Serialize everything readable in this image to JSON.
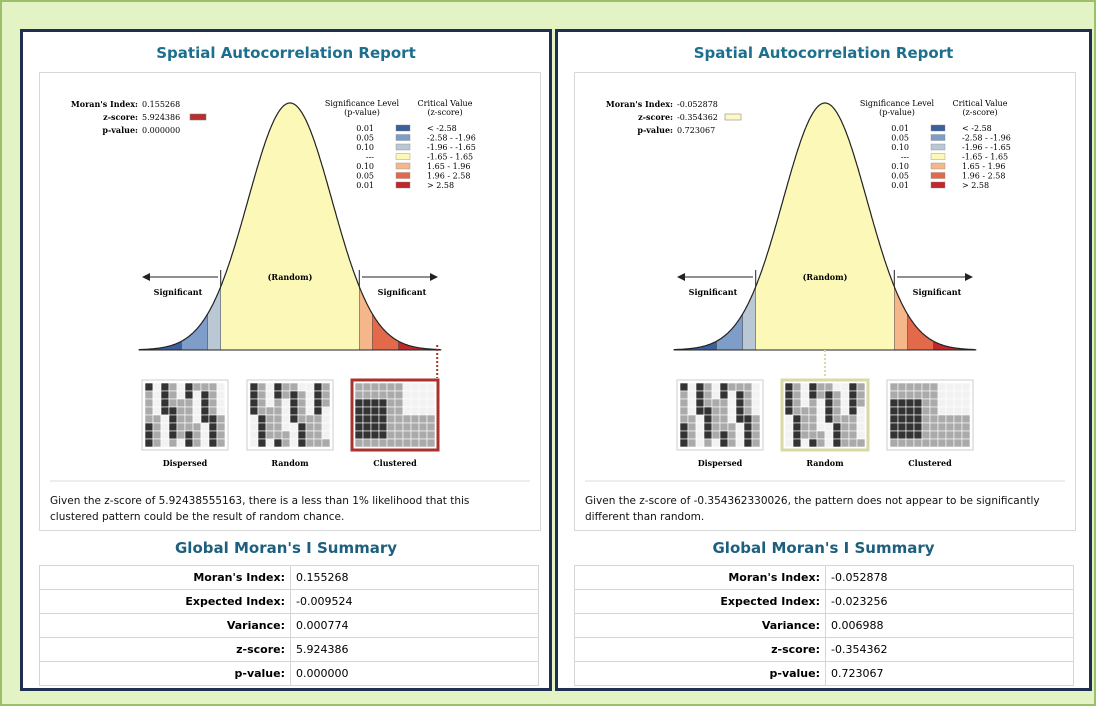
{
  "reports": [
    {
      "title": "Spatial Autocorrelation Report",
      "stats": [
        {
          "label": "Moran's Index:",
          "value": "0.155268"
        },
        {
          "label": "z-score:",
          "value": "5.924386"
        },
        {
          "label": "p-value:",
          "value": "0.000000"
        }
      ],
      "zscore_color": "#b8302e",
      "legend": {
        "headers": [
          [
            "Significance Level",
            "(p-value)"
          ],
          [
            "Critical Value",
            "(z-score)"
          ]
        ],
        "rows": [
          [
            "0.01",
            "< -2.58"
          ],
          [
            "0.05",
            "-2.58 - -1.96"
          ],
          [
            "0.10",
            "-1.96 - -1.65"
          ],
          [
            "---",
            "-1.65 - 1.65"
          ],
          [
            "0.10",
            "1.65 - 1.96"
          ],
          [
            "0.05",
            "1.96 - 2.58"
          ],
          [
            "0.01",
            "> 2.58"
          ]
        ]
      },
      "curve_labels": {
        "center": "(Random)",
        "left": "Significant",
        "right": "Significant"
      },
      "patterns": [
        "Dispersed",
        "Random",
        "Clustered"
      ],
      "highlight": 2,
      "highlight_color": "#a8322e",
      "description": "Given the z-score of 5.92438555163, there is a less than 1% likelihood that this clustered pattern could be the result of random chance.",
      "summary": {
        "title": "Global Moran's I Summary",
        "rows": [
          [
            "Moran's Index:",
            "0.155268"
          ],
          [
            "Expected Index:",
            "-0.009524"
          ],
          [
            "Variance:",
            "0.000774"
          ],
          [
            "z-score:",
            "5.924386"
          ],
          [
            "p-value:",
            "0.000000"
          ]
        ]
      }
    },
    {
      "title": "Spatial Autocorrelation Report",
      "stats": [
        {
          "label": "Moran's Index:",
          "value": "-0.052878"
        },
        {
          "label": "z-score:",
          "value": "-0.354362"
        },
        {
          "label": "p-value:",
          "value": "0.723067"
        }
      ],
      "zscore_color": "#fdf8c4",
      "legend": {
        "headers": [
          [
            "Significance Level",
            "(p-value)"
          ],
          [
            "Critical Value",
            "(z-score)"
          ]
        ],
        "rows": [
          [
            "0.01",
            "< -2.58"
          ],
          [
            "0.05",
            "-2.58 - -1.96"
          ],
          [
            "0.10",
            "-1.96 - -1.65"
          ],
          [
            "---",
            "-1.65 - 1.65"
          ],
          [
            "0.10",
            "1.65 - 1.96"
          ],
          [
            "0.05",
            "1.96 - 2.58"
          ],
          [
            "0.01",
            "> 2.58"
          ]
        ]
      },
      "curve_labels": {
        "center": "(Random)",
        "left": "Significant",
        "right": "Significant"
      },
      "patterns": [
        "Dispersed",
        "Random",
        "Clustered"
      ],
      "highlight": 1,
      "highlight_color": "#d9d9a6",
      "description": "Given the z-score of -0.354362330026, the pattern does not appear to be significantly different than random.",
      "summary": {
        "title": "Global Moran's I Summary",
        "rows": [
          [
            "Moran's Index:",
            "-0.052878"
          ],
          [
            "Expected Index:",
            "-0.023256"
          ],
          [
            "Variance:",
            "0.006988"
          ],
          [
            "z-score:",
            "-0.354362"
          ],
          [
            "p-value:",
            "0.723067"
          ]
        ]
      }
    }
  ]
}
